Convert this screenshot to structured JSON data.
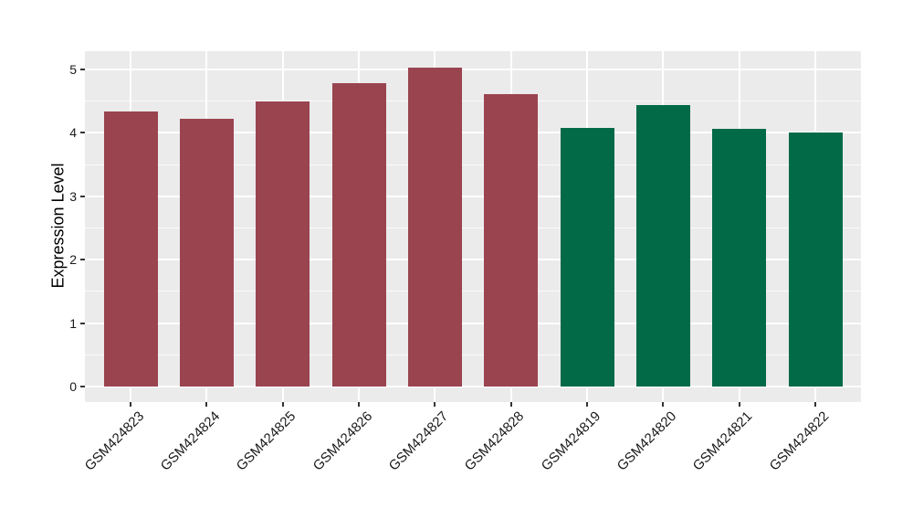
{
  "chart_data": {
    "type": "bar",
    "title": "",
    "xlabel": "",
    "ylabel": "Expression Level",
    "categories": [
      "GSM424823",
      "GSM424824",
      "GSM424825",
      "GSM424826",
      "GSM424827",
      "GSM424828",
      "GSM424819",
      "GSM424820",
      "GSM424821",
      "GSM424822"
    ],
    "values": [
      4.33,
      4.22,
      4.5,
      4.79,
      5.03,
      4.61,
      4.08,
      4.44,
      4.07,
      4.01
    ],
    "bar_colors": [
      "#9A4450",
      "#9A4450",
      "#9A4450",
      "#9A4450",
      "#9A4450",
      "#9A4450",
      "#026A47",
      "#026A47",
      "#026A47",
      "#026A47"
    ],
    "group_colors": {
      "red_group": "#9A4450",
      "green_group": "#026A47"
    },
    "yticks": [
      0,
      1,
      2,
      3,
      4,
      5
    ],
    "ytick_labels": [
      "0",
      "1",
      "2",
      "3",
      "4",
      "5"
    ],
    "y_minor_ticks": [
      0.5,
      1.5,
      2.5,
      3.5,
      4.5
    ],
    "ylim": [
      -0.25,
      5.29
    ],
    "legend": "none",
    "grid": "horizontal major+minor, vertical major at category centers",
    "style": {
      "panel_background": "#EBEBEB",
      "grid_color": "#FFFFFF",
      "tick_color": "#333333",
      "text_color": "#1A1A1A",
      "figure_background": "#FFFFFF"
    }
  }
}
